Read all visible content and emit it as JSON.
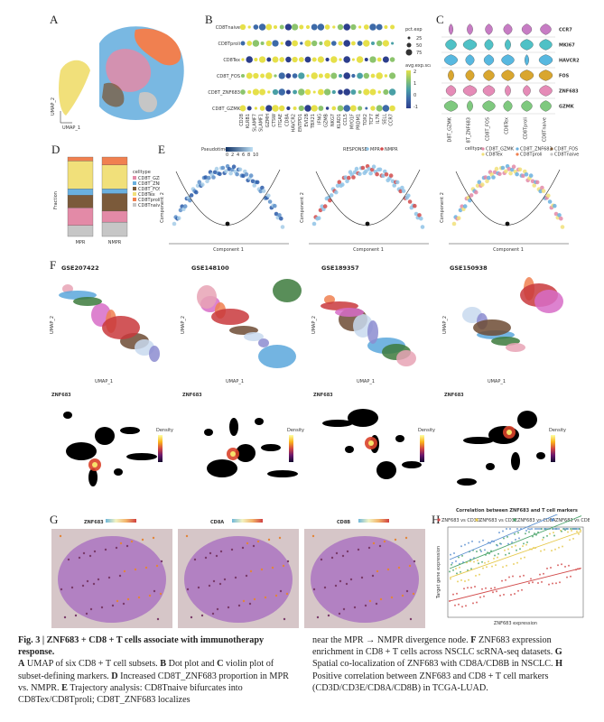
{
  "panels": {
    "A": {
      "label": "A",
      "xaxis": "UMAP_1",
      "yaxis": "UMAP_2",
      "clusters": [
        "CD8T_GZMK",
        "CD8T_ZNF683",
        "CD8Tex",
        "CD8T_FOS",
        "CD8Tproli",
        "CD8Tnaive"
      ]
    },
    "B": {
      "label": "B",
      "rows": [
        "CD8Tnaive",
        "CD8Tproli",
        "CD8Tex",
        "CD8T_FOS",
        "CD8T_ZNF683",
        "CD8T_GZMK"
      ],
      "genes": [
        "CD28",
        "KLRB1",
        "SLAMF7",
        "SLAMF1",
        "GZMH",
        "CTSW",
        "ITGAE",
        "CD8A",
        "HAVCR2",
        "ENTPD1",
        "EVI2B",
        "TBX21",
        "IFNG",
        "GZMB",
        "NKG7",
        "KLRD1",
        "CCL5",
        "MYO1F",
        "PRDM1",
        "TOX2",
        "TCF7",
        "IL7R",
        "SELL",
        "CCR7"
      ],
      "legend_size_title": "pct.exp",
      "legend_size_values": [
        "25",
        "50",
        "75"
      ],
      "legend_color_title": "avg.exp.scaled",
      "legend_color_ticks": [
        "2",
        "1",
        "0",
        "-1"
      ]
    },
    "C": {
      "label": "C",
      "genes": [
        "CCR7",
        "MKI67",
        "HAVCR2",
        "FOS",
        "ZNF683",
        "GZMK"
      ],
      "groups": [
        "CD8T_GZMK",
        "CD8T_ZNF683",
        "CD8T_FOS",
        "CD8Tex",
        "CD8Tproli",
        "CD8Tnaive"
      ]
    },
    "D": {
      "label": "D",
      "ylabel": "Fraction",
      "categories": [
        "MPR",
        "NMPR"
      ],
      "legend_title": "celltype",
      "legend": [
        "CD8T_GZMK",
        "CD8T_ZNF683",
        "CD8T_FOS",
        "CD8Tex",
        "CD8Tproli",
        "CD8Tnaive"
      ]
    },
    "E": {
      "label": "E",
      "xlabel": "Component 1",
      "ylabel": "Component 2",
      "legend1_title": "Pseudotime",
      "legend1_ticks": [
        "0",
        "2",
        "4",
        "6",
        "8",
        "10"
      ],
      "legend2_title": "RESPONSE",
      "legend2_items": [
        "MPR",
        "NMPR"
      ],
      "legend3_title": "celltype",
      "legend3_items": [
        "CD8T_GZMK",
        "CD8T_ZNF683",
        "CD8T_FOS",
        "CD8Tex",
        "CD8Tproli",
        "CD8Tnaive"
      ]
    },
    "F": {
      "label": "F",
      "datasets": [
        "GSE207422",
        "GSE148100",
        "GSE189357",
        "GSE150938"
      ],
      "xlabel": "UMAP_1",
      "ylabel": "UMAP_2",
      "gene": "ZNF683",
      "density_title": "Density"
    },
    "G": {
      "label": "G",
      "titles": [
        "ZNF683",
        "CD8A",
        "CD8B"
      ]
    },
    "H": {
      "label": "H",
      "title": "Correlation between ZNF683 and T cell markers",
      "legend": [
        "ZNF683 vs CD3D",
        "ZNF683 vs CD3E",
        "ZNF683 vs CD8A",
        "ZNF683 vs CD8B"
      ],
      "xlabel": "ZNF683 expression",
      "ylabel": "Target gene expression"
    }
  },
  "caption": {
    "title": "Fig. 3 | ZNF683 + CD8 + T cells associate with immunotherapy response.",
    "left": [
      {
        "b": "A",
        "t": " UMAP of six CD8 + T cell subsets. "
      },
      {
        "b": "B",
        "t": " Dot plot and "
      },
      {
        "b": "C",
        "t": " violin plot of subset-defining markers. "
      },
      {
        "b": "D",
        "t": " Increased CD8T_ZNF683 proportion in MPR vs. NMPR. "
      },
      {
        "b": "E",
        "t": " Trajectory analysis: CD8Tnaive bifurcates into CD8Tex/CD8Tproli; CD8T_ZNF683 localizes"
      }
    ],
    "right": [
      {
        "b": "",
        "t": "near the MPR → NMPR divergence node. "
      },
      {
        "b": "F",
        "t": " ZNF683 expression enrichment in CD8 + T cells across NSCLC scRNA-seq datasets. "
      },
      {
        "b": "G",
        "t": " Spatial co-localization of ZNF683 with CD8A/CD8B in NSCLC. "
      },
      {
        "b": "H",
        "t": " Positive correlation between ZNF683 and CD8 + T cell markers (CD3D/CD3E/CD8A/CD8B) in TCGA-LUAD."
      }
    ]
  },
  "colors": {
    "gzmk": "#e38aa7",
    "znf683": "#6ab0df",
    "fos": "#7b5a3a",
    "tex": "#f1e07a",
    "proli": "#f08050",
    "naive": "#c6c6c6",
    "accent": "#2d78c4"
  }
}
